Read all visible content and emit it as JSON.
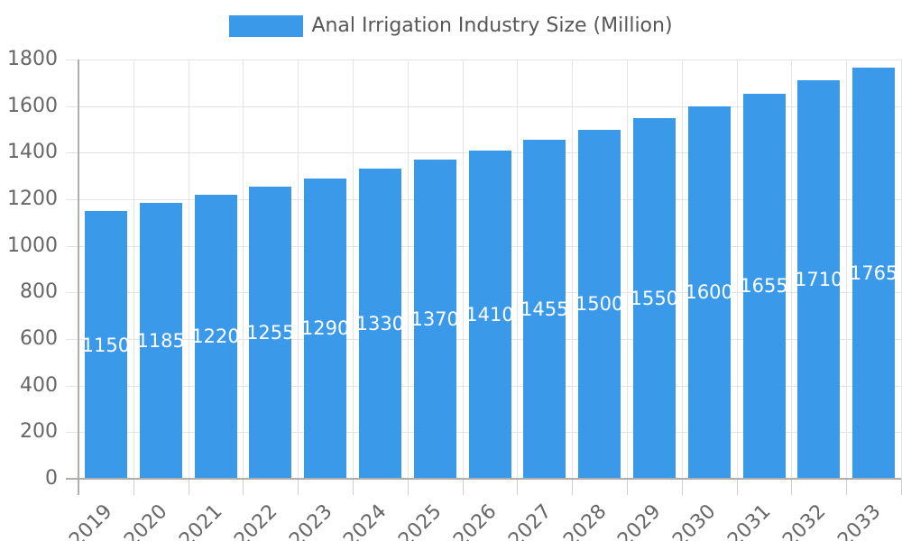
{
  "chart_data": {
    "type": "bar",
    "title": "Anal Irrigation Industry Size (Million)",
    "categories": [
      "2019",
      "2020",
      "2021",
      "2022",
      "2023",
      "2024",
      "2025",
      "2026",
      "2027",
      "2028",
      "2029",
      "2030",
      "2031",
      "2032",
      "2033"
    ],
    "values": [
      1150,
      1185,
      1220,
      1255,
      1290,
      1330,
      1370,
      1410,
      1455,
      1500,
      1550,
      1600,
      1655,
      1710,
      1765
    ],
    "xlabel": "",
    "ylabel": "",
    "ylim": [
      0,
      1800
    ],
    "ytick_step": 200,
    "yticks": [
      0,
      200,
      400,
      600,
      800,
      1000,
      1200,
      1400,
      1600,
      1800
    ],
    "grid": true,
    "legend_position": "top-center",
    "bar_labels_inside": true,
    "colors": {
      "bar": "#3b99ea",
      "bar_label": "#ffffff",
      "grid_line": "#e4e4e4",
      "tick_line": "#cfcfcf",
      "axis_line": "#aeaeae",
      "axis_text": "#666666",
      "legend_text": "#575757",
      "background": "#ffffff"
    }
  }
}
